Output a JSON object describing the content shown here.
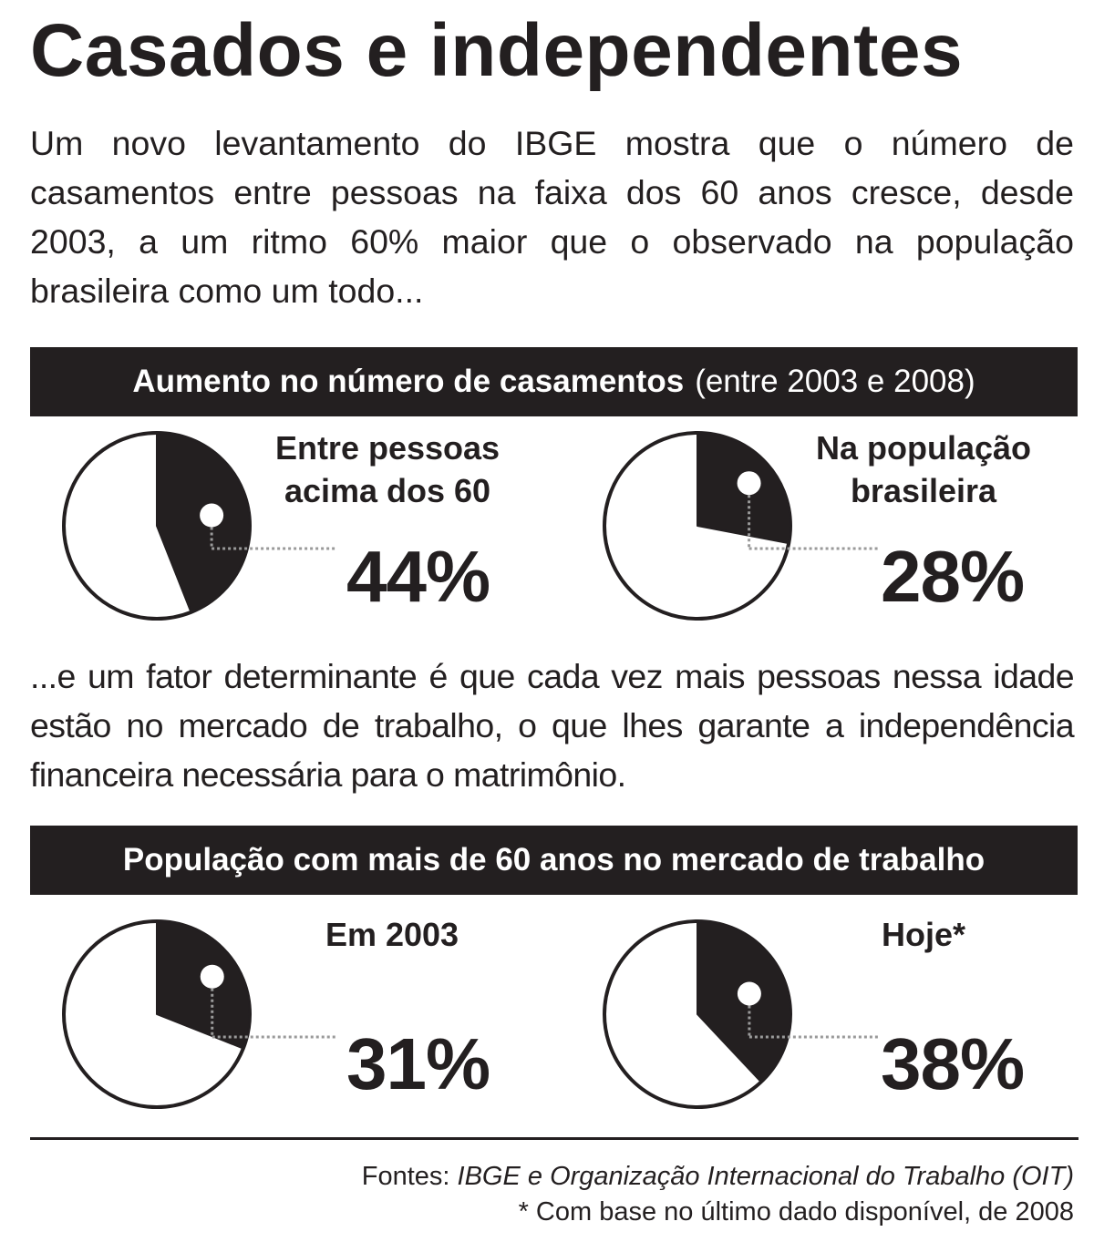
{
  "header": {
    "title": "Casados e independentes",
    "intro": "Um novo levantamento do IBGE mostra que o número de casamentos entre pessoas na faixa dos 60 anos cresce, desde 2003, a um ritmo 60% maior que o observado na população brasileira como um todo..."
  },
  "section1": {
    "heading": "Aumento no número de casamentos",
    "heading_extra": "(entre 2003 e 2008)"
  },
  "middle_text": "...e um fator determinante é que cada vez mais pessoas nessa idade estão no mercado de trabalho, o que lhes garante a independência financeira necessária para o matrimônio.",
  "section2": {
    "heading": "População com mais de 60 anos no mercado de trabalho"
  },
  "chart_data": [
    {
      "type": "pie",
      "title": "Aumento no número de casamentos (entre 2003 e 2008)",
      "slices": [
        {
          "label_lines": [
            "Entre pessoas",
            "acima dos 60"
          ],
          "value": 44,
          "value_label": "44%"
        },
        {
          "label_lines": [
            "Na população",
            "brasileira"
          ],
          "value": 28,
          "value_label": "28%"
        }
      ]
    },
    {
      "type": "pie",
      "title": "População com mais de 60 anos no mercado de trabalho",
      "slices": [
        {
          "label_lines": [
            "Em 2003"
          ],
          "value": 31,
          "value_label": "31%"
        },
        {
          "label_lines": [
            "Hoje*"
          ],
          "value": 38,
          "value_label": "38%"
        }
      ]
    }
  ],
  "footer": {
    "sources_prefix": "Fontes:",
    "sources": "IBGE e Organização Internacional do Trabalho (OIT)",
    "note": "* Com base no último dado disponível, de 2008"
  },
  "colors": {
    "ink": "#231f20",
    "paper": "#ffffff"
  }
}
